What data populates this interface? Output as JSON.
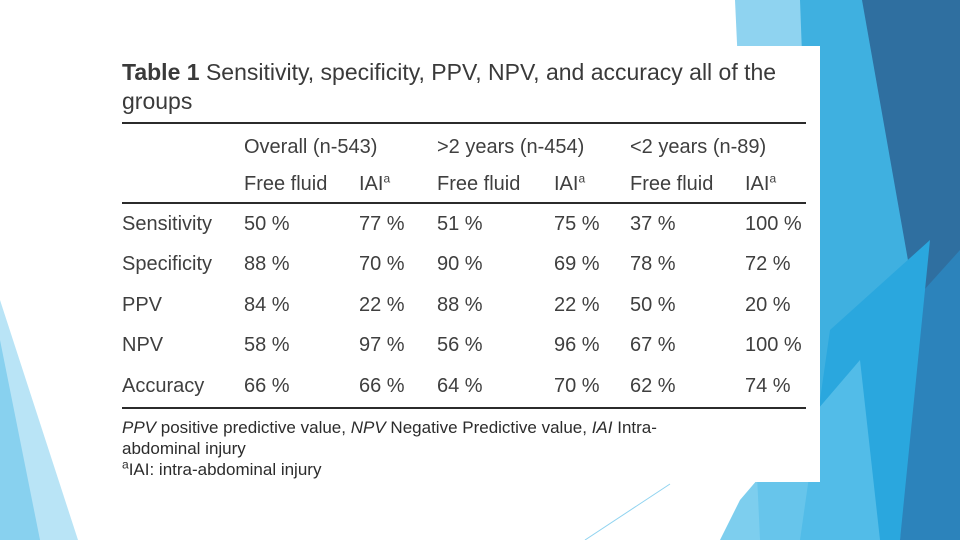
{
  "colors": {
    "slide_background": "#ffffff",
    "accent_light": "#7fcdee",
    "accent_mid": "#2fa6db",
    "accent_dark": "#2f6fa0"
  },
  "table": {
    "caption_label": "Table 1",
    "caption_text_line1": "Sensitivity, specificity, PPV, NPV, and accuracy all of the",
    "caption_text_line2": "groups",
    "groups": [
      "Overall (n-543)",
      ">2 years (n-454)",
      "<2 years (n-89)"
    ],
    "subheaders": {
      "free_fluid": "Free fluid",
      "iai": "IAI",
      "iai_superscript": "a"
    },
    "rows": [
      {
        "label": "Sensitivity",
        "values": [
          "50 %",
          "77 %",
          "51 %",
          "75 %",
          "37 %",
          "100 %"
        ]
      },
      {
        "label": "Specificity",
        "values": [
          "88 %",
          "70 %",
          "90 %",
          "69 %",
          "78 %",
          "72 %"
        ]
      },
      {
        "label": "PPV",
        "values": [
          "84 %",
          "22 %",
          "88 %",
          "22 %",
          "50 %",
          "20 %"
        ]
      },
      {
        "label": "NPV",
        "values": [
          "58 %",
          "97 %",
          "56 %",
          "96 %",
          "67 %",
          "100 %"
        ]
      },
      {
        "label": "Accuracy",
        "values": [
          "66 %",
          "66 %",
          "64 %",
          "70 %",
          "62 %",
          "74 %"
        ]
      }
    ],
    "footnote": {
      "abbr1": "PPV",
      "def1": "positive predictive value,",
      "abbr2": "NPV",
      "def2": "Negative Predictive value,",
      "abbr3": "IAI",
      "def3": "Intra-abdominal injury",
      "note_marker": "a",
      "note_text": "IAI: intra-abdominal injury"
    }
  }
}
